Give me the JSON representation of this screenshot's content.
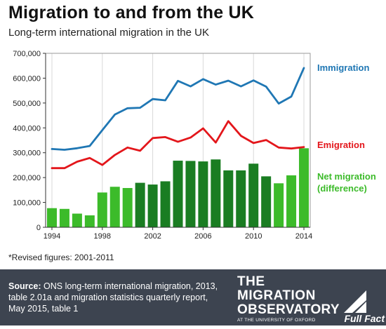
{
  "header": {
    "title": "Migration to and from the UK",
    "subtitle": "Long-term international migration in the UK"
  },
  "chart_data": {
    "type": "bar",
    "title": "Migration to and from the UK",
    "subtitle": "Long-term international migration in the UK",
    "ylim": [
      0,
      700000
    ],
    "y_ticks": [
      "0",
      "100,000",
      "200,000",
      "300,000",
      "400,000",
      "500,000",
      "600,000",
      "700,000"
    ],
    "y_tick_values": [
      0,
      100000,
      200000,
      300000,
      400000,
      500000,
      600000,
      700000
    ],
    "x_ticks": [
      "1994",
      "1998",
      "2002",
      "2006",
      "2010",
      "2014"
    ],
    "x_tick_values": [
      1994,
      1998,
      2002,
      2006,
      2010,
      2014
    ],
    "x": [
      1994,
      1995,
      1996,
      1997,
      1998,
      1999,
      2000,
      2001,
      2002,
      2003,
      2004,
      2005,
      2006,
      2007,
      2008,
      2009,
      2010,
      2011,
      2012,
      2013,
      2014
    ],
    "grid": "vertical",
    "series": [
      {
        "name": "Immigration",
        "kind": "line",
        "color": "#1f77b4",
        "values": [
          315000,
          312000,
          318000,
          327000,
          391000,
          454000,
          479000,
          481000,
          516000,
          511000,
          589000,
          567000,
          596000,
          574000,
          590000,
          567000,
          591000,
          566000,
          498000,
          526000,
          641000
        ]
      },
      {
        "name": "Emigration",
        "kind": "line",
        "color": "#e3161b",
        "values": [
          238000,
          238000,
          264000,
          279000,
          251000,
          291000,
          321000,
          308000,
          359000,
          363000,
          344000,
          361000,
          398000,
          341000,
          427000,
          368000,
          339000,
          351000,
          321000,
          317000,
          323000
        ]
      },
      {
        "name": "Net migration (difference)",
        "kind": "bar",
        "colors": [
          "#1a7d22",
          "#3cbb2a"
        ],
        "values": [
          77000,
          74000,
          55000,
          48000,
          140000,
          163000,
          158000,
          179000,
          172000,
          185000,
          268000,
          267000,
          265000,
          273000,
          229000,
          229000,
          256000,
          205000,
          177000,
          209000,
          318000
        ]
      }
    ],
    "note": "*Revised figures: 2001-2011"
  },
  "series_labels": {
    "immigration": "Immigration",
    "emigration": "Emigration",
    "net_line1": "Net migration",
    "net_line2": "(difference)"
  },
  "footer": {
    "source_label": "Source:",
    "source_text": "ONS long-term international migration, 2013, table 2.01a and migration statistics quarterly report, May 2015, table 1",
    "logo_line1": "THE",
    "logo_line2": "MIGRATION",
    "logo_line3": "OBSERVATORY",
    "logo_line4": "AT THE UNIVERSITY OF OXFORD",
    "fullfact_text": "Full Fact"
  }
}
